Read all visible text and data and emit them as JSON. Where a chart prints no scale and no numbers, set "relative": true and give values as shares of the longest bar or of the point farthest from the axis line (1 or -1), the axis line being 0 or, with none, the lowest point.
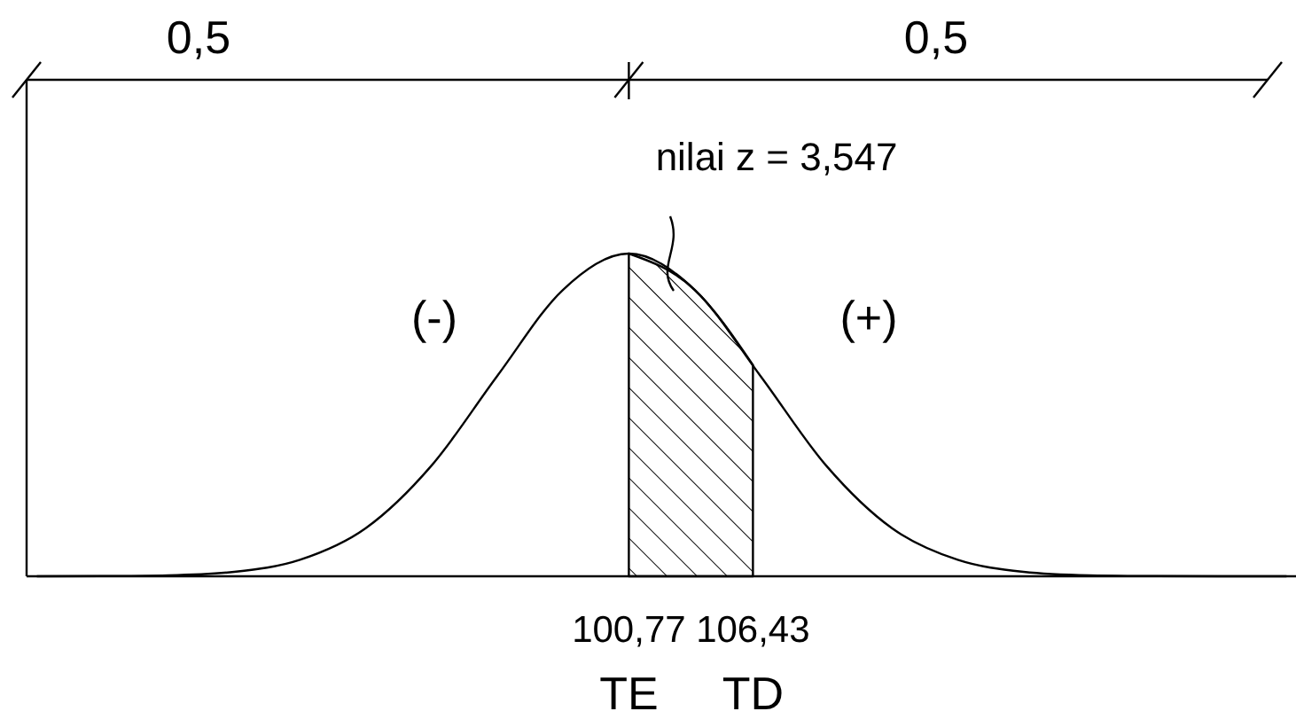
{
  "chart_data": {
    "type": "line",
    "relative": true,
    "xlim": [
      73.3,
      131.2
    ],
    "xticks": [
      {
        "value": 100.77,
        "label": "100,77"
      },
      {
        "value": 106.43,
        "label": "106,43"
      }
    ],
    "tick_labels": "x",
    "grid": false,
    "marker": "none",
    "line_style": "solid",
    "series": [
      {
        "color": "#000000",
        "x": [
          73.77,
          76.77,
          79.77,
          82.77,
          85.77,
          88.77,
          91.77,
          94.77,
          97.77,
          100.77,
          103.77,
          106.77,
          109.77,
          112.77,
          115.77,
          118.77,
          121.77,
          124.77,
          127.77,
          130.77
        ],
        "values": [
          0,
          0.0005,
          0.0029,
          0.0138,
          0.051,
          0.149,
          0.343,
          0.621,
          0.888,
          1,
          0.888,
          0.621,
          0.343,
          0.149,
          0.051,
          0.0138,
          0.0029,
          0.0005,
          0,
          0
        ]
      },
      {
        "type": "area",
        "color": "#000000",
        "x": [
          100.77,
          103.77,
          106.43
        ],
        "values": [
          1,
          0.888,
          0.655
        ]
      }
    ],
    "annotations": [
      "0,5",
      "0,5",
      "nilai z = 3,547",
      "(-)",
      "(+)",
      "TE",
      "TD"
    ]
  }
}
